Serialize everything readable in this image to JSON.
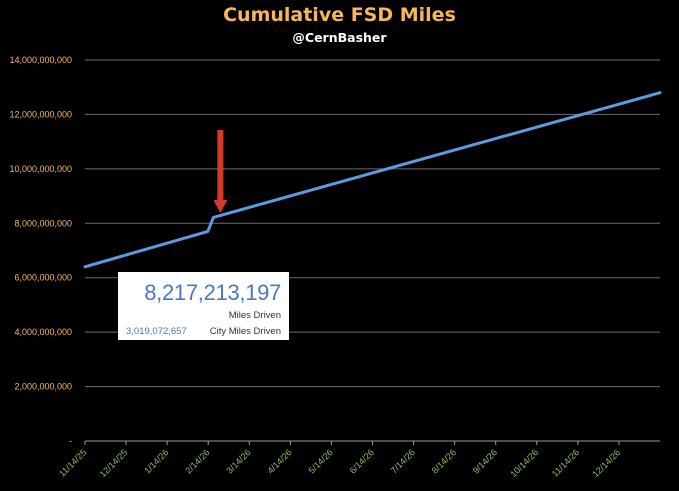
{
  "chart_data": {
    "type": "line",
    "title": "Cumulative FSD Miles",
    "subtitle": "@CernBasher",
    "colors": {
      "title": "#f6b75a",
      "line": "#5b9be0",
      "arrow": "#d43a2a",
      "y_tick": "#f4b86a",
      "x_tick": "#8fbf5f",
      "callout_number": "#4a78c4"
    },
    "y_ticks": [
      "-",
      "2,000,000,000",
      "4,000,000,000",
      "6,000,000,000",
      "8,000,000,000",
      "10,000,000,000",
      "12,000,000,000",
      "14,000,000,000"
    ],
    "x_ticks": [
      "11/14/25",
      "12/14/25",
      "1/14/26",
      "2/14/26",
      "3/14/26",
      "4/14/26",
      "5/14/26",
      "6/14/26",
      "7/14/26",
      "8/14/26",
      "9/14/26",
      "10/14/26",
      "11/14/26",
      "12/14/26"
    ],
    "ylim": [
      0,
      14000000000
    ],
    "grid": true,
    "series": [
      {
        "x": [
          "2025-11-14",
          "2026-02-10",
          "2026-02-14",
          "2026-12-31"
        ],
        "values": [
          6400000000,
          7700000000,
          8217213197,
          12800000000
        ]
      }
    ],
    "annotation": {
      "arrow_at": "2026-02-14",
      "value_text": "8,217,213,197",
      "value_label": "Miles Driven",
      "secondary_value": "3,019,072,657",
      "secondary_label": "City Miles Driven"
    }
  }
}
